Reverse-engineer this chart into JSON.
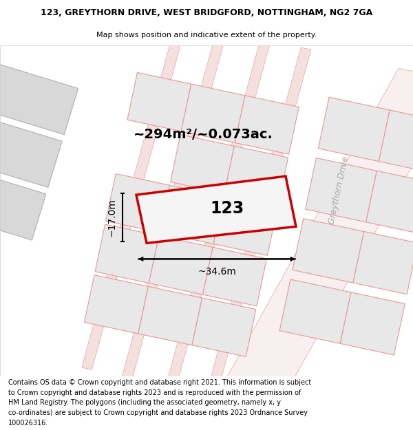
{
  "title_line1": "123, GREYTHORN DRIVE, WEST BRIDGFORD, NOTTINGHAM, NG2 7GA",
  "title_line2": "Map shows position and indicative extent of the property.",
  "footer_text": "Contains OS data © Crown copyright and database right 2021. This information is subject to Crown copyright and database rights 2023 and is reproduced with the permission of HM Land Registry. The polygons (including the associated geometry, namely x, y co-ordinates) are subject to Crown copyright and database rights 2023 Ordnance Survey 100026316.",
  "area_label": "~294m²/~0.073ac.",
  "number_label": "123",
  "width_label": "~34.6m",
  "height_label": "~17.0m",
  "street_label": "Greythorn Drive",
  "title_fontsize": 9.0,
  "subtitle_fontsize": 8.0,
  "footer_fontsize": 7.0,
  "map_bg": "#ffffff",
  "subject_fill": "#f5f5f5",
  "subject_edge": "#cc0000",
  "neighbor_fill": "#e8e8e8",
  "neighbor_edge": "#e89898",
  "left_fill": "#d8d8d8",
  "left_edge": "#b0b0b0",
  "road_fill": "#faf0f0",
  "road_edge": "#e8a0a0",
  "greythorn_fill": "#f8f0f0"
}
